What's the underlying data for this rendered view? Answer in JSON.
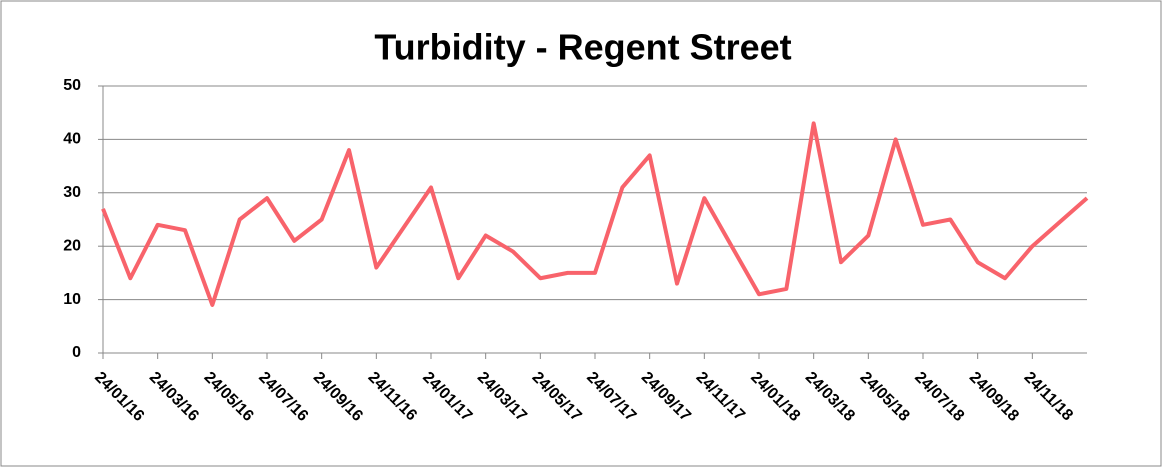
{
  "chart_data": {
    "type": "line",
    "title": "Turbidity - Regent Street",
    "categories": [
      "24/01/16",
      null,
      "24/03/16",
      null,
      "24/05/16",
      null,
      "24/07/16",
      null,
      "24/09/16",
      null,
      "24/11/16",
      null,
      "24/01/17",
      null,
      "24/03/17",
      null,
      "24/05/17",
      null,
      "24/07/17",
      null,
      "24/09/17",
      null,
      "24/11/17",
      null,
      "24/01/18",
      null,
      "24/03/18",
      null,
      "24/05/18",
      null,
      "24/07/18",
      null,
      "24/09/18",
      null,
      "24/11/18",
      null,
      null
    ],
    "series": [
      {
        "name": "Turbidity",
        "color": "#f8636b",
        "values": [
          27,
          14,
          24,
          23,
          9,
          25,
          29,
          21,
          25,
          38,
          16,
          23.5,
          31,
          14,
          22,
          19,
          14,
          15,
          15,
          31,
          37,
          13,
          29,
          20,
          11,
          12,
          43,
          17,
          22,
          40,
          24,
          25,
          17,
          14,
          20,
          24.5,
          29
        ]
      }
    ],
    "ylim": [
      0,
      50
    ],
    "yticks": [
      0,
      10,
      20,
      30,
      40,
      50
    ],
    "grid": true
  }
}
